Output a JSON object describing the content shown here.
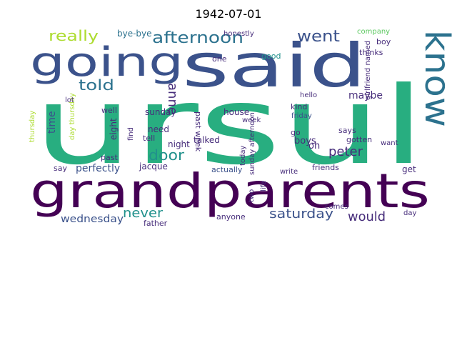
{
  "figure": {
    "title": "1942-07-01"
  },
  "colors": {
    "dark_purple": "#440154",
    "purple": "#472d7b",
    "indigo": "#3b528b",
    "blue": "#2c728e",
    "teal": "#21918c",
    "green": "#28ae80",
    "light_green": "#5ec962",
    "lime": "#addc30",
    "yellow": "#d8e219"
  },
  "words": [
    {
      "text": "ursul"
    },
    {
      "text": "grandparents"
    },
    {
      "text": "said"
    },
    {
      "text": "going"
    },
    {
      "text": "know"
    },
    {
      "text": "afternoon"
    },
    {
      "text": "went"
    },
    {
      "text": "really"
    },
    {
      "text": "told"
    },
    {
      "text": "bye-bye"
    },
    {
      "text": "door"
    },
    {
      "text": "never"
    },
    {
      "text": "saturday"
    },
    {
      "text": "would"
    },
    {
      "text": "wednesday"
    },
    {
      "text": "anne"
    },
    {
      "text": "time"
    },
    {
      "text": "peter"
    },
    {
      "text": "perfectly"
    },
    {
      "text": "jacque"
    },
    {
      "text": "sunday"
    },
    {
      "text": "maybe"
    },
    {
      "text": "honestly"
    },
    {
      "text": "boy"
    },
    {
      "text": "thinks"
    },
    {
      "text": "good"
    },
    {
      "text": "one"
    },
    {
      "text": "company"
    },
    {
      "text": "hello"
    },
    {
      "text": "kind"
    },
    {
      "text": "friday"
    },
    {
      "text": "gotten"
    },
    {
      "text": "says"
    },
    {
      "text": "want"
    },
    {
      "text": "get"
    },
    {
      "text": "boys"
    },
    {
      "text": "friends"
    },
    {
      "text": "write"
    },
    {
      "text": "actually"
    },
    {
      "text": "talked"
    },
    {
      "text": "house"
    },
    {
      "text": "week"
    },
    {
      "text": "need"
    },
    {
      "text": "night"
    },
    {
      "text": "tell"
    },
    {
      "text": "eight"
    },
    {
      "text": "find"
    },
    {
      "text": "well"
    },
    {
      "text": "past"
    },
    {
      "text": "say"
    },
    {
      "text": "father"
    },
    {
      "text": "anyone"
    },
    {
      "text": "comes"
    },
    {
      "text": "day"
    },
    {
      "text": "go"
    },
    {
      "text": "oh"
    },
    {
      "text": "two"
    },
    {
      "text": "today"
    },
    {
      "text": "sunday afternoon"
    },
    {
      "text": "past week"
    },
    {
      "text": "thursday"
    },
    {
      "text": "day thursday"
    },
    {
      "text": "lot"
    },
    {
      "text": "life"
    },
    {
      "text": "girlfriend named"
    }
  ]
}
